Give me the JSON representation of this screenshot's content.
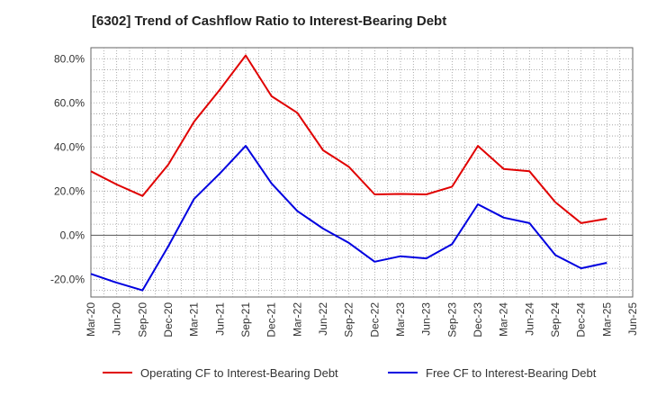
{
  "chart_data": {
    "type": "line",
    "title": "[6302]  Trend of Cashflow Ratio to Interest-Bearing Debt",
    "xlabel": "",
    "ylabel": "",
    "categories": [
      "Mar-20",
      "Jun-20",
      "Sep-20",
      "Dec-20",
      "Mar-21",
      "Jun-21",
      "Sep-21",
      "Dec-21",
      "Mar-22",
      "Jun-22",
      "Sep-22",
      "Dec-22",
      "Mar-23",
      "Jun-23",
      "Sep-23",
      "Dec-23",
      "Mar-24",
      "Jun-24",
      "Sep-24",
      "Dec-24",
      "Mar-25",
      "Jun-25"
    ],
    "yticks": [
      -20,
      0,
      20,
      40,
      60,
      80
    ],
    "ytick_labels": [
      "-20.0%",
      "0.0%",
      "20.0%",
      "40.0%",
      "60.0%",
      "80.0%"
    ],
    "ylim": [
      -28,
      85
    ],
    "grid": true,
    "legend_position": "bottom",
    "series": [
      {
        "name": "Operating CF to Interest-Bearing Debt",
        "color": "#e00000",
        "values": [
          29,
          23,
          17.8,
          32,
          51.5,
          66,
          81.5,
          63,
          55.5,
          38.5,
          31,
          18.5,
          18.7,
          18.5,
          22,
          40.5,
          30,
          29,
          15,
          5.5,
          7.5,
          null
        ]
      },
      {
        "name": "Free CF to Interest-Bearing Debt",
        "color": "#0000e0",
        "values": [
          -17.5,
          -21.5,
          -25,
          -5,
          16.5,
          28,
          40.5,
          23.5,
          11,
          3,
          -3.5,
          -12,
          -9.5,
          -10.5,
          -4,
          14,
          8,
          5.5,
          -9,
          -15,
          -12.5,
          null
        ]
      }
    ]
  }
}
